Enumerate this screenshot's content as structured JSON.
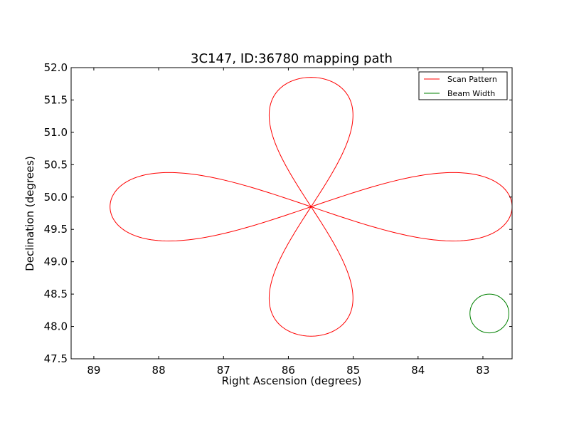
{
  "chart_data": {
    "type": "line",
    "title": "3C147, ID:36780 mapping path",
    "xlabel": "Right Ascension (degrees)",
    "ylabel": "Declination (degrees)",
    "xlim": [
      89.35,
      82.55
    ],
    "ylim": [
      47.5,
      52.0
    ],
    "x_ticks": [
      89,
      88,
      87,
      86,
      85,
      84,
      83
    ],
    "x_tick_labels": [
      "89",
      "88",
      "87",
      "86",
      "85",
      "84",
      "83"
    ],
    "y_ticks": [
      47.5,
      48.0,
      48.5,
      49.0,
      49.5,
      50.0,
      50.5,
      51.0,
      51.5,
      52.0
    ],
    "y_tick_labels": [
      "47.5",
      "48.0",
      "48.5",
      "49.0",
      "49.5",
      "50.0",
      "50.5",
      "51.0",
      "51.5",
      "52.0"
    ],
    "grid": false,
    "legend_position": "top-right",
    "series": [
      {
        "name": "Scan Pattern",
        "color": "#ff0000",
        "shape": "four-lobed rose",
        "center": [
          85.65,
          49.85
        ],
        "ra_lobe_extent": 3.1,
        "dec_lobe_extent": 2.0,
        "lobe_half_width_ra": 0.55,
        "lobe_half_width_dec": 0.45
      },
      {
        "name": "Beam Width",
        "color": "#008000",
        "shape": "circle",
        "center": [
          82.9,
          48.2
        ],
        "radius_ra": 0.3,
        "radius_dec": 0.3
      }
    ]
  }
}
